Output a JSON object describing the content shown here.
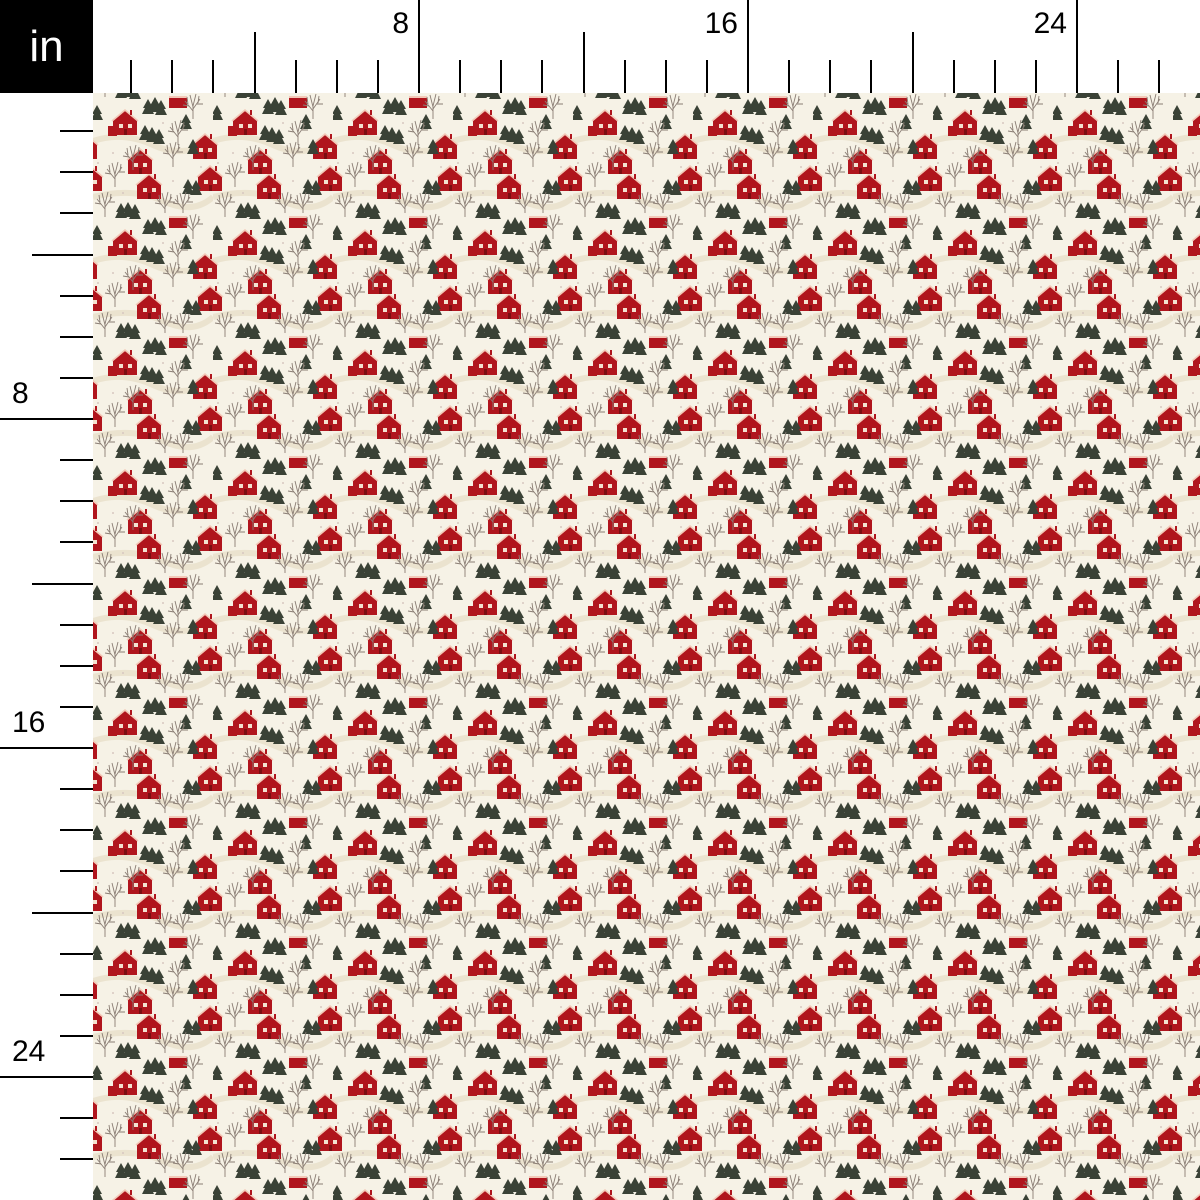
{
  "unit_label": "in",
  "ruler": {
    "inches_shown": 26,
    "major_every": 8,
    "mid_every": 4,
    "labels": [
      "8",
      "16",
      "24"
    ]
  },
  "pattern": {
    "description_colors": {
      "background": "#f6f2e6",
      "house_red": "#b0151d",
      "tree_green": "#3a4236",
      "bare_tree": "#8a7d74",
      "snow": "#ebe3cf"
    }
  }
}
